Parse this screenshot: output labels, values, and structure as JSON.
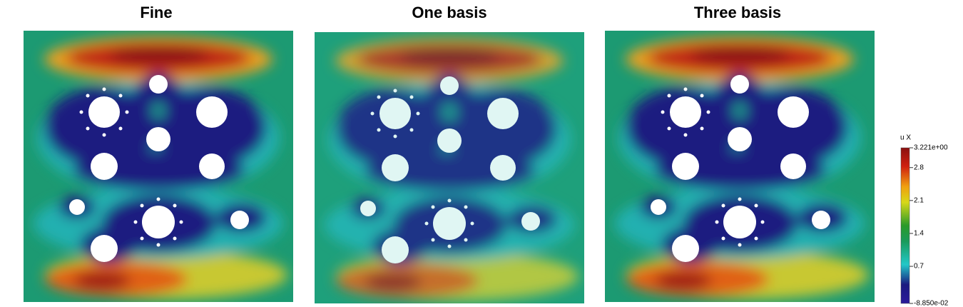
{
  "panels": [
    {
      "title": "Fine"
    },
    {
      "title": "One basis"
    },
    {
      "title": "Three basis"
    }
  ],
  "colorbar": {
    "title": "u X",
    "lim": [
      -0.0885,
      3.221
    ],
    "ticks": [
      {
        "value": 3.221,
        "label": "3.221e+00"
      },
      2.8,
      2.1,
      1.4,
      0.7,
      {
        "value": -0.0885,
        "label": "-8.850e-02"
      }
    ]
  }
}
